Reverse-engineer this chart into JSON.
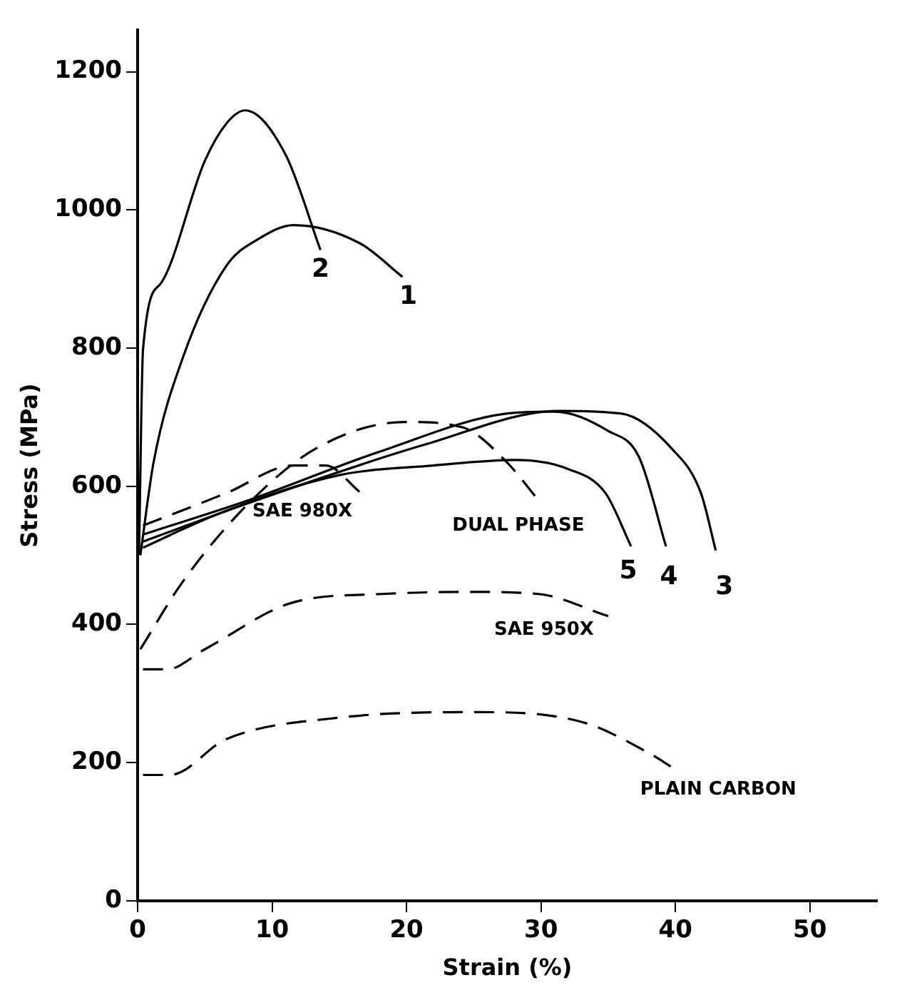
{
  "chart_data": {
    "type": "line",
    "xlabel": "Strain (%)",
    "ylabel": "Stress (MPa)",
    "xlim": [
      0,
      55
    ],
    "ylim": [
      0,
      1260
    ],
    "xticks": [
      0,
      10,
      20,
      30,
      40,
      50
    ],
    "yticks": [
      0,
      200,
      400,
      600,
      800,
      1000,
      1200
    ],
    "grid": false,
    "legend": false,
    "marker": "none",
    "series": [
      {
        "name": "1",
        "color": "#000000",
        "line_style": "solid",
        "x": [
          0.2,
          1.2,
          3.4,
          6.6,
          9,
          11.6,
          16.5,
          19.7
        ],
        "values": [
          500,
          636,
          788,
          919,
          958,
          978,
          952,
          903
        ]
      },
      {
        "name": "2",
        "color": "#000000",
        "line_style": "solid",
        "x": [
          0.1,
          0.4,
          1.7,
          5,
          6.6,
          8,
          11,
          13.6
        ],
        "values": [
          500,
          798,
          893,
          1071,
          1125,
          1144,
          1080,
          942
        ]
      },
      {
        "name": "3",
        "color": "#000000",
        "line_style": "solid",
        "x": [
          0.4,
          8.3,
          21.5,
          31.4,
          36,
          39.7,
          41.9,
          43
        ],
        "values": [
          520,
          576,
          661,
          709,
          705,
          655,
          590,
          507
        ]
      },
      {
        "name": "4",
        "color": "#000000",
        "line_style": "solid",
        "x": [
          0.4,
          8.3,
          18,
          27.4,
          31,
          35,
          37.3,
          39.3
        ],
        "values": [
          530,
          580,
          650,
          705,
          708,
          680,
          642,
          513
        ]
      },
      {
        "name": "5",
        "color": "#000000",
        "line_style": "solid",
        "x": [
          0.4,
          6,
          15,
          22,
          28.1,
          32,
          34.8,
          36.7
        ],
        "values": [
          511,
          560,
          616,
          630,
          638,
          625,
          590,
          513
        ]
      },
      {
        "name": "SAE 980X",
        "color": "#000000",
        "line_style": "dashed",
        "x": [
          0.4,
          6.6,
          11.6,
          14,
          16.5
        ],
        "values": [
          543,
          590,
          630,
          630,
          592
        ]
      },
      {
        "name": "DUAL PHASE",
        "color": "#000000",
        "line_style": "dashed",
        "x": [
          0.2,
          3.4,
          8.3,
          13.3,
          19.9,
          24.2,
          27.4,
          29.8
        ],
        "values": [
          364,
          463,
          576,
          655,
          693,
          685,
          636,
          580
        ]
      },
      {
        "name": "SAE 950X",
        "color": "#000000",
        "line_style": "dashed",
        "x": [
          0.4,
          2.2,
          5,
          11.6,
          18.2,
          24.9,
          29.8,
          35
        ],
        "values": [
          335,
          335,
          364,
          432,
          444,
          447,
          444,
          412
        ]
      },
      {
        "name": "PLAIN CARBON",
        "color": "#000000",
        "line_style": "dashed",
        "x": [
          0.4,
          2.4,
          6.6,
          15,
          24.9,
          33,
          38,
          40
        ],
        "values": [
          182,
          182,
          234,
          265,
          273,
          259,
          214,
          190
        ]
      }
    ]
  }
}
